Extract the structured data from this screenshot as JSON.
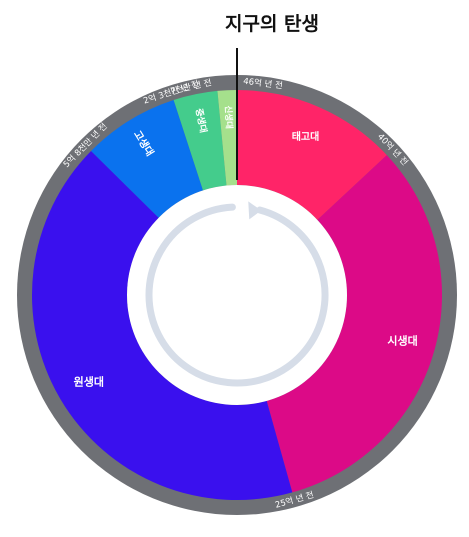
{
  "title": "지구의 탄생",
  "eras": [
    {
      "name": "태고대",
      "color": "#ff2468"
    },
    {
      "name": "시생대",
      "color": "#dc0a87"
    },
    {
      "name": "원생대",
      "color": "#3a10ee"
    },
    {
      "name": "고생대",
      "color": "#0a72ee"
    },
    {
      "name": "중생대",
      "color": "#44cc8c"
    },
    {
      "name": "신생대",
      "color": "#a5e08c"
    }
  ],
  "chart_data": {
    "type": "pie",
    "title": "지구의 탄생",
    "slices": [
      {
        "name": "태고대",
        "start_bya": 4.6,
        "end_bya": 4.0,
        "value": 0.6
      },
      {
        "name": "시생대",
        "start_bya": 4.0,
        "end_bya": 2.5,
        "value": 1.5
      },
      {
        "name": "원생대",
        "start_bya": 2.5,
        "end_bya": 0.58,
        "value": 1.92
      },
      {
        "name": "고생대",
        "start_bya": 0.58,
        "end_bya": 0.23,
        "value": 0.35
      },
      {
        "name": "중생대",
        "start_bya": 0.23,
        "end_bya": 0.07,
        "value": 0.16
      },
      {
        "name": "신생대",
        "start_bya": 0.07,
        "end_bya": 0.0,
        "value": 0.07
      }
    ],
    "tick_labels": [
      "46억 년 전",
      "40억 년 전",
      "25억 년 전",
      "5억 8천만 년 전",
      "2억 3천만 년 전",
      "7천만 년 전"
    ]
  }
}
